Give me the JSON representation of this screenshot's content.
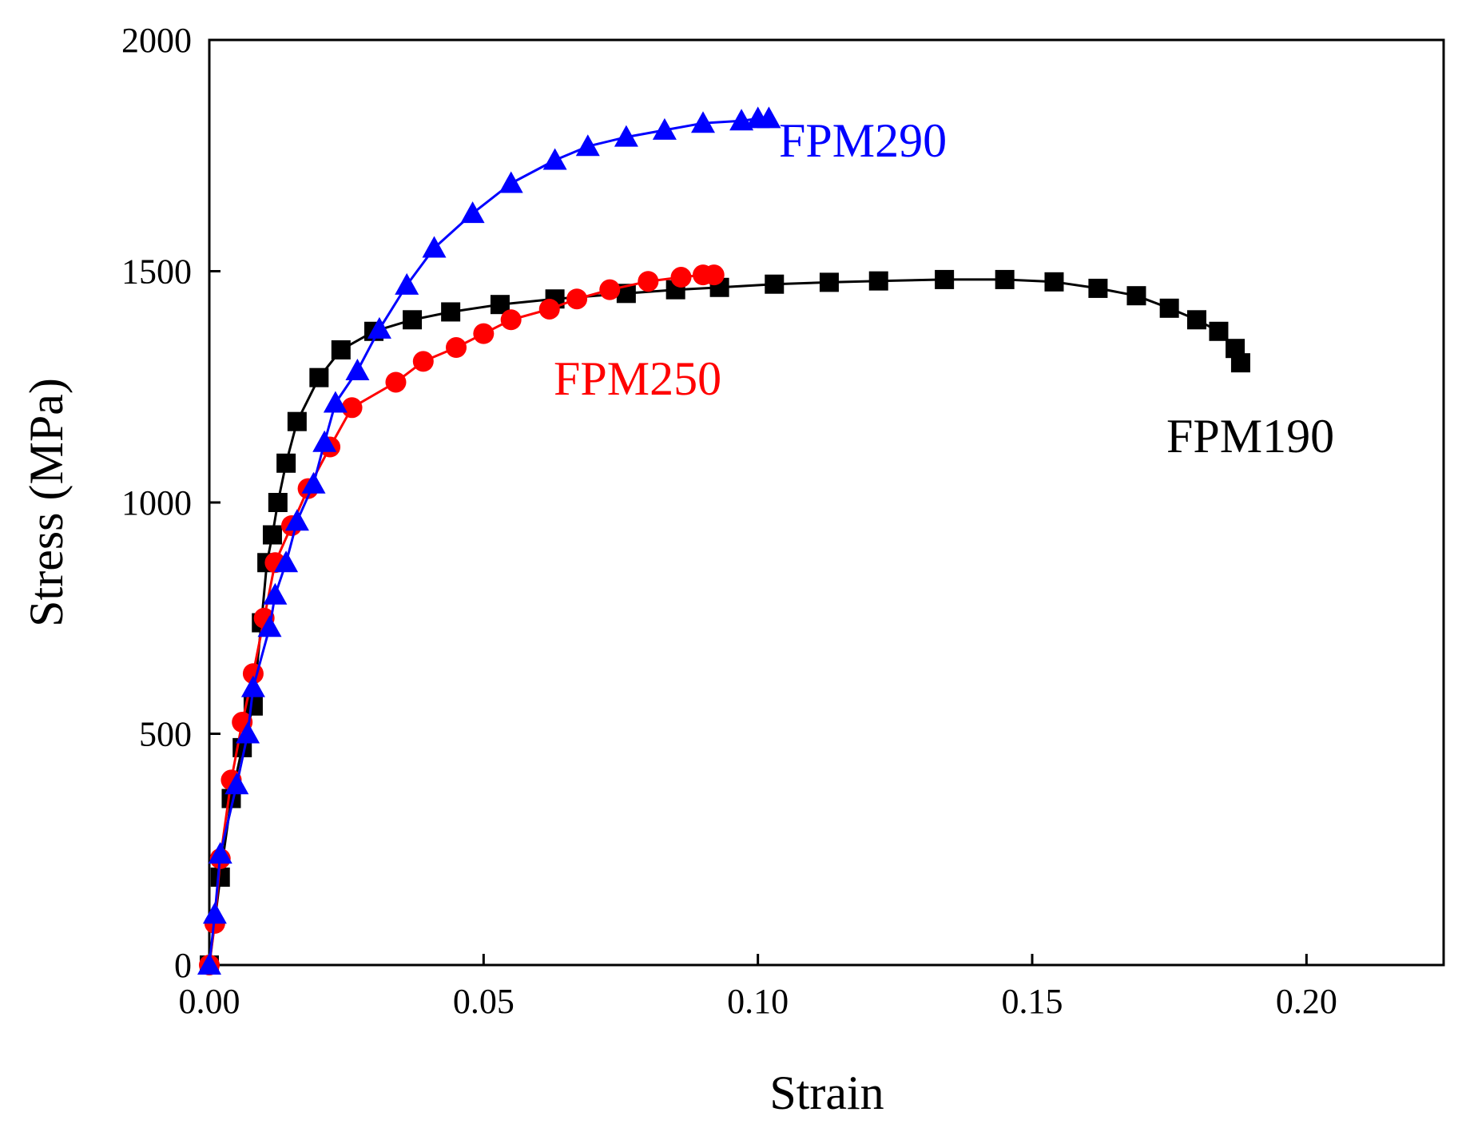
{
  "chart_data": {
    "type": "line",
    "title": "",
    "xlabel": "Strain",
    "ylabel": "Stress (MPa)",
    "xlim": [
      0,
      0.225
    ],
    "ylim": [
      0,
      2000
    ],
    "xticks": [
      0.0,
      0.05,
      0.1,
      0.15,
      0.2
    ],
    "xtick_labels": [
      "0.00",
      "0.05",
      "0.10",
      "0.15",
      "0.20"
    ],
    "yticks": [
      0,
      500,
      1000,
      1500,
      2000
    ],
    "ytick_labels": [
      "0",
      "500",
      "1000",
      "1500",
      "2000"
    ],
    "grid": false,
    "legend": "inline labels",
    "series": [
      {
        "name": "FPM190",
        "label": "FPM190",
        "color": "#000000",
        "marker": "square",
        "x": [
          0.0,
          0.002,
          0.004,
          0.006,
          0.008,
          0.0095,
          0.0105,
          0.0115,
          0.0125,
          0.014,
          0.016,
          0.02,
          0.024,
          0.03,
          0.037,
          0.044,
          0.053,
          0.063,
          0.076,
          0.085,
          0.093,
          0.103,
          0.113,
          0.122,
          0.134,
          0.145,
          0.154,
          0.162,
          0.169,
          0.175,
          0.18,
          0.184,
          0.187,
          0.188
        ],
        "y": [
          0,
          190,
          360,
          470,
          560,
          740,
          870,
          930,
          1000,
          1085,
          1175,
          1270,
          1330,
          1370,
          1395,
          1412,
          1428,
          1440,
          1452,
          1460,
          1465,
          1472,
          1476,
          1479,
          1482,
          1482,
          1477,
          1463,
          1447,
          1420,
          1395,
          1370,
          1333,
          1302
        ]
      },
      {
        "name": "FPM250",
        "label": "FPM250",
        "color": "#ff0000",
        "marker": "circle",
        "x": [
          0.0,
          0.001,
          0.002,
          0.004,
          0.006,
          0.008,
          0.01,
          0.012,
          0.015,
          0.018,
          0.022,
          0.026,
          0.034,
          0.039,
          0.045,
          0.05,
          0.055,
          0.062,
          0.067,
          0.073,
          0.08,
          0.086,
          0.09,
          0.092
        ],
        "y": [
          0,
          90,
          230,
          400,
          525,
          630,
          750,
          870,
          950,
          1030,
          1120,
          1205,
          1260,
          1305,
          1335,
          1365,
          1395,
          1418,
          1440,
          1460,
          1478,
          1487,
          1492,
          1492
        ]
      },
      {
        "name": "FPM290",
        "label": "FPM290",
        "color": "#0000ff",
        "marker": "triangle",
        "x": [
          0.0,
          0.001,
          0.002,
          0.005,
          0.007,
          0.008,
          0.011,
          0.012,
          0.014,
          0.016,
          0.019,
          0.021,
          0.023,
          0.027,
          0.031,
          0.036,
          0.041,
          0.048,
          0.055,
          0.063,
          0.069,
          0.076,
          0.083,
          0.09,
          0.097,
          0.1,
          0.102
        ],
        "y": [
          0,
          110,
          240,
          390,
          500,
          600,
          730,
          800,
          870,
          960,
          1040,
          1130,
          1215,
          1285,
          1375,
          1470,
          1550,
          1625,
          1690,
          1740,
          1770,
          1790,
          1805,
          1820,
          1825,
          1830,
          1830
        ]
      }
    ]
  }
}
